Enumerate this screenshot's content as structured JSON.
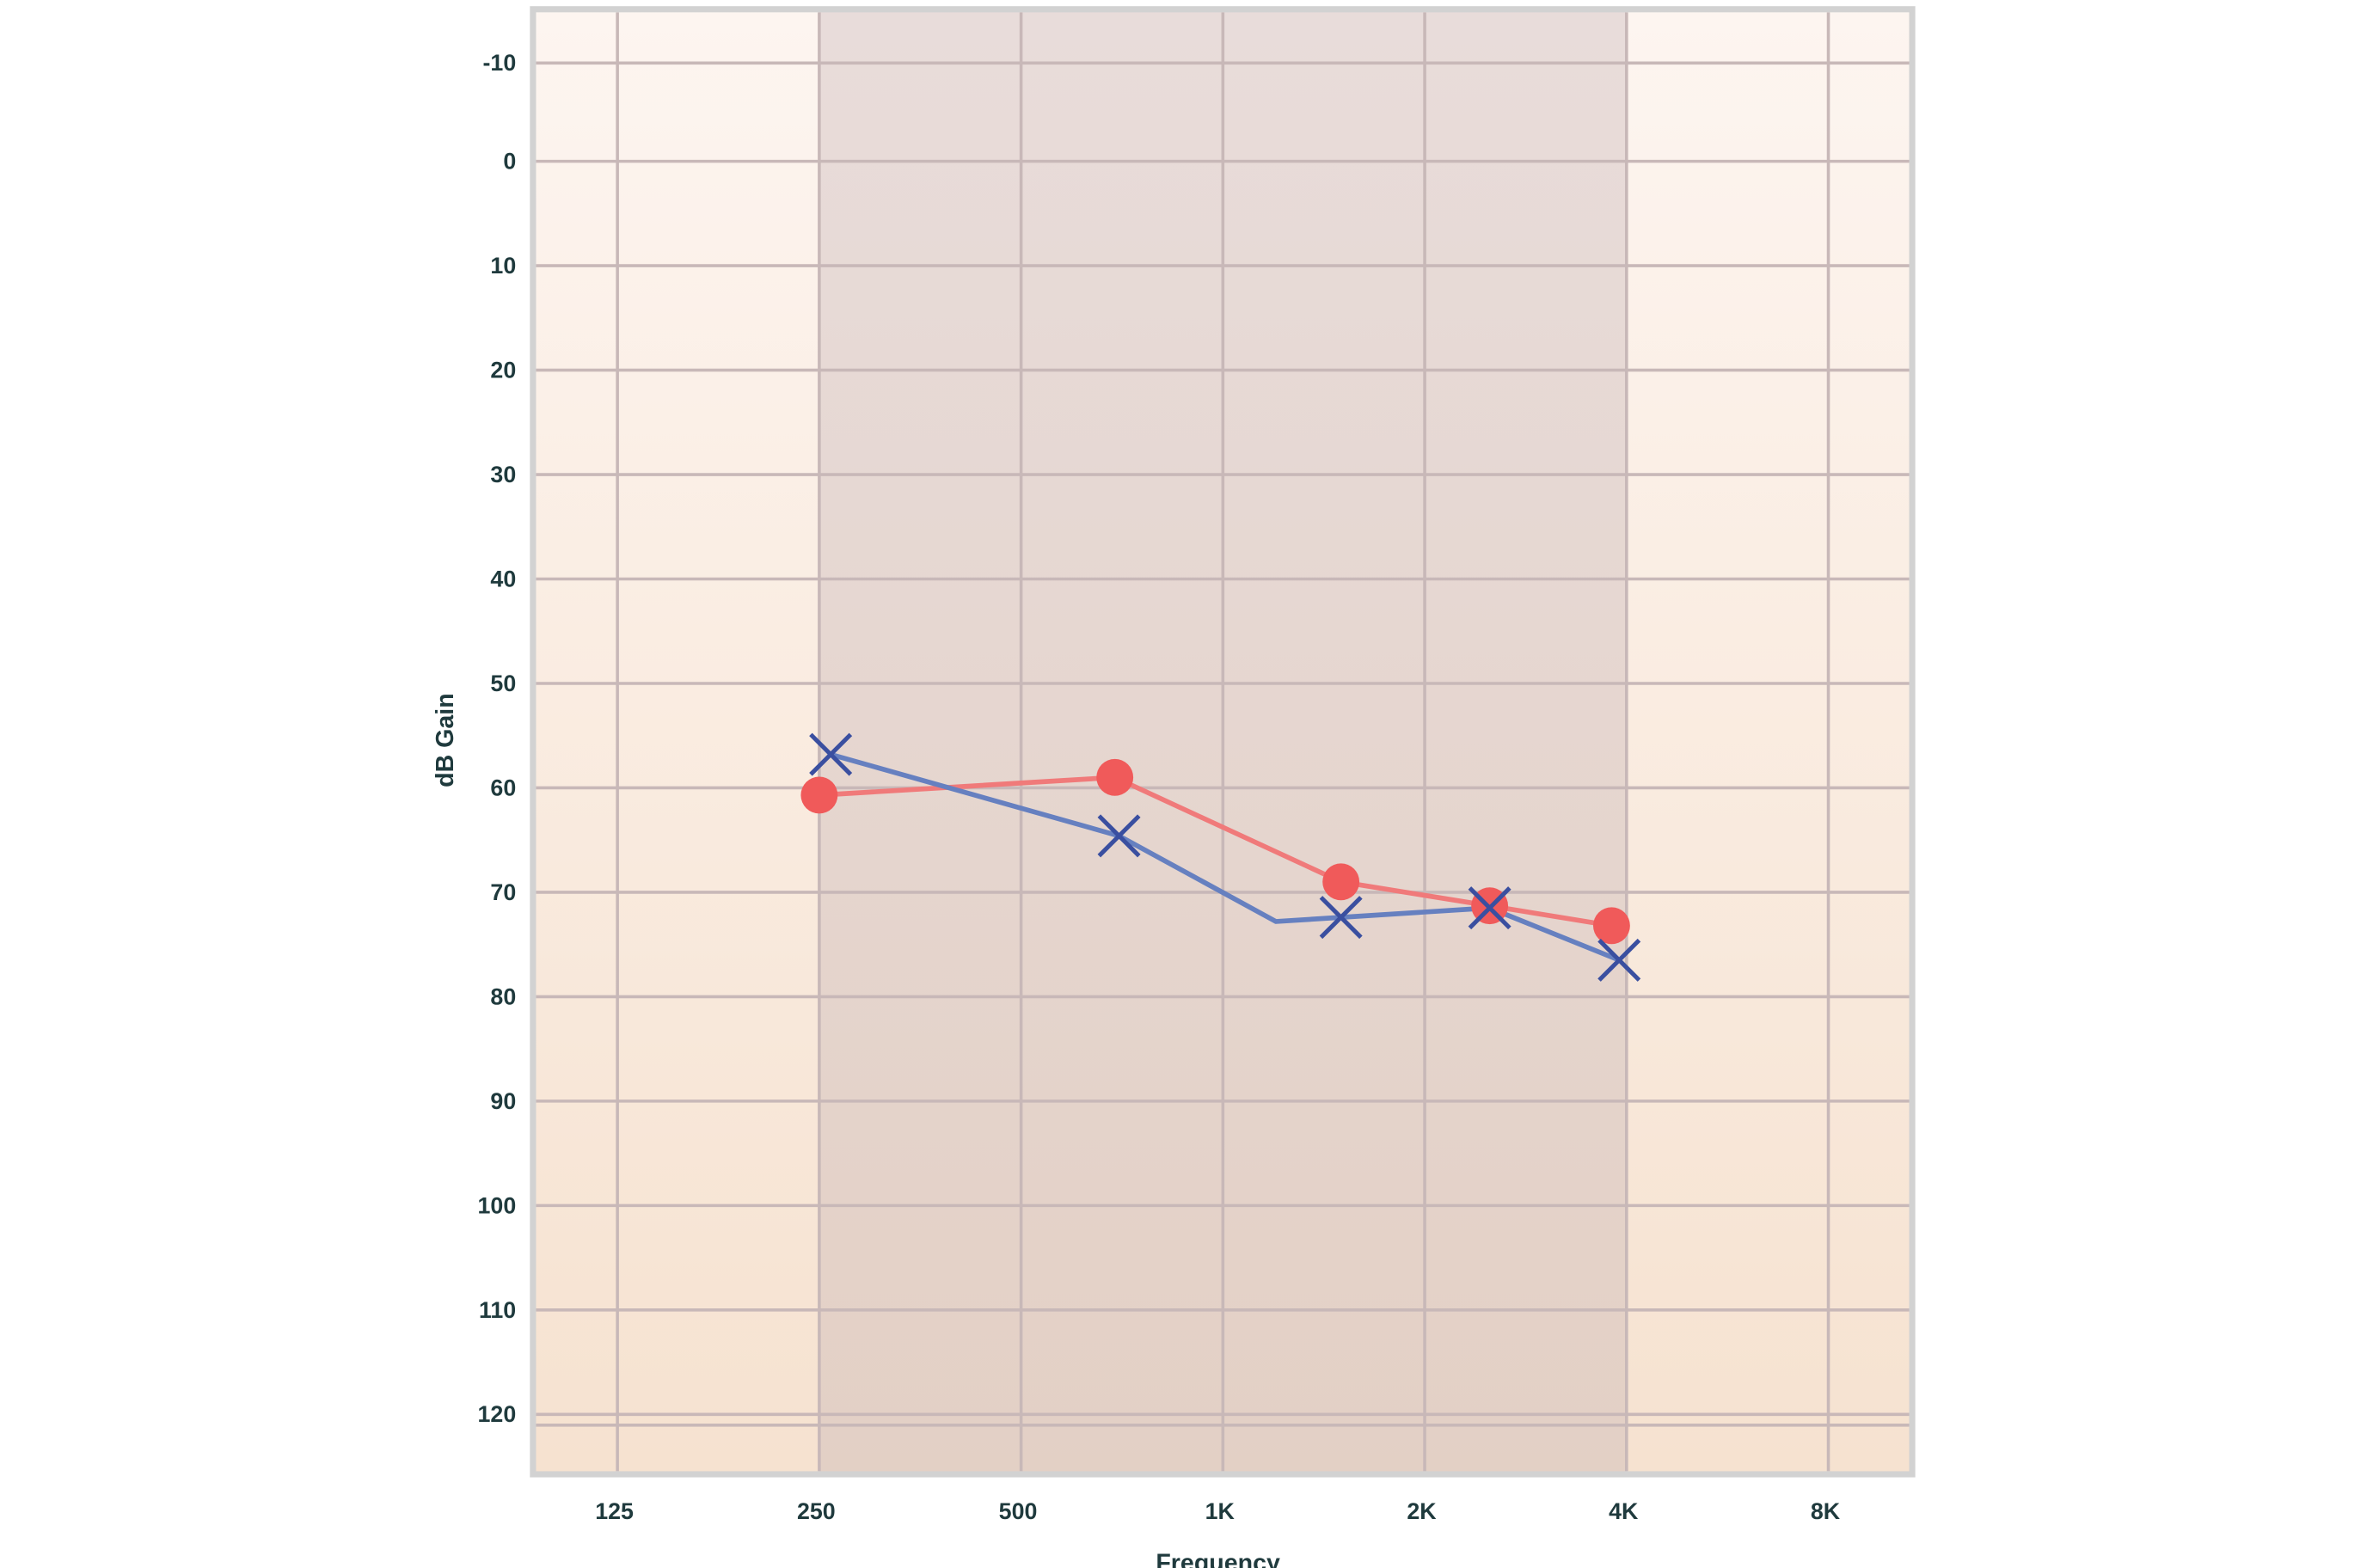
{
  "chart_data": {
    "type": "line",
    "title": "",
    "xlabel": "Frequency",
    "ylabel": "dB Gain",
    "x_scale": "log2",
    "y_inverted": true,
    "ylim": [
      -10,
      120
    ],
    "grid": true,
    "x_ticks": [
      {
        "value": 125,
        "label": "125"
      },
      {
        "value": 250,
        "label": "250"
      },
      {
        "value": 500,
        "label": "500"
      },
      {
        "value": 1000,
        "label": "1K"
      },
      {
        "value": 2000,
        "label": "2K"
      },
      {
        "value": 4000,
        "label": "4K"
      },
      {
        "value": 8000,
        "label": "8K"
      }
    ],
    "y_ticks": [
      -10,
      0,
      10,
      20,
      30,
      40,
      50,
      60,
      70,
      80,
      90,
      100,
      110,
      120
    ],
    "shaded_band": {
      "from": 250,
      "to": 4000
    },
    "colors": {
      "background_top": "#fdf5f0",
      "background_bottom": "#f6e2d0",
      "band_top": "#e8dcda",
      "band_bottom": "#e3d0c5",
      "grid": "#c8b8b8",
      "frame": "#d2d2d2",
      "text": "#1f3a3d"
    },
    "series": [
      {
        "marker": "circle",
        "color": "#f05a5a",
        "line_color": "#f07a7a",
        "points": [
          {
            "x": 250,
            "y": 60.7
          },
          {
            "x": 690,
            "y": 59
          },
          {
            "x": 1500,
            "y": 69
          },
          {
            "x": 2500,
            "y": 71.3
          },
          {
            "x": 3800,
            "y": 73.2
          }
        ]
      },
      {
        "marker": "x",
        "color": "#3a4fa0",
        "line_color": "#6680c0",
        "points": [
          {
            "x": 260,
            "y": 56.8,
            "marker": true
          },
          {
            "x": 700,
            "y": 64.6,
            "marker": true
          },
          {
            "x": 1200,
            "y": 72.8,
            "marker": false
          },
          {
            "x": 1500,
            "y": 72.4,
            "marker": true
          },
          {
            "x": 2500,
            "y": 71.5,
            "marker": true
          },
          {
            "x": 3900,
            "y": 76.5,
            "marker": true
          }
        ]
      }
    ]
  }
}
